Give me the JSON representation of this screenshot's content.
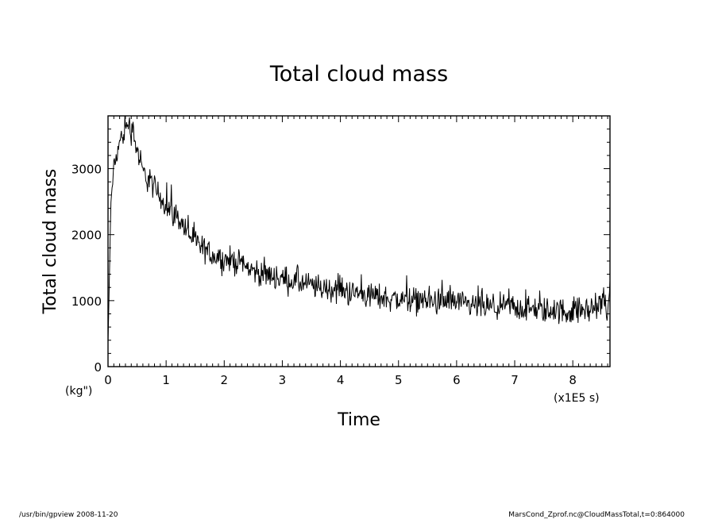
{
  "chart_data": {
    "type": "line",
    "title": "Total cloud mass",
    "xlabel": "Time",
    "ylabel": "Total cloud mass",
    "x_unit": "(x1E5 s)",
    "y_unit": "(kg\")",
    "xlim": [
      0,
      8.64
    ],
    "ylim": [
      0,
      3800
    ],
    "x_ticks": [
      "0",
      "1",
      "2",
      "3",
      "4",
      "5",
      "6",
      "7",
      "8"
    ],
    "y_ticks": [
      "0",
      "1000",
      "2000",
      "3000"
    ],
    "grid": false,
    "color": "#000000",
    "trend": {
      "x": [
        0,
        0.05,
        0.1,
        0.2,
        0.3,
        0.35,
        0.45,
        0.6,
        0.8,
        1.0,
        1.2,
        1.4,
        1.6,
        1.8,
        2.0,
        2.2,
        2.5,
        2.8,
        3.0,
        3.3,
        3.6,
        4.0,
        4.5,
        5.0,
        5.5,
        6.0,
        6.5,
        7.0,
        7.5,
        8.0,
        8.64
      ],
      "values": [
        300,
        2500,
        3000,
        3400,
        3600,
        3700,
        3450,
        2950,
        2700,
        2450,
        2250,
        2000,
        1800,
        1700,
        1620,
        1600,
        1450,
        1380,
        1330,
        1270,
        1200,
        1150,
        1080,
        1020,
        990,
        930,
        900,
        880,
        850,
        830,
        920
      ]
    },
    "noise_amplitude": 220
  },
  "footer": {
    "left": "/usr/bin/gpview   2008-11-20",
    "right": "MarsCond_Zprof.nc@CloudMassTotal,t=0:864000"
  }
}
